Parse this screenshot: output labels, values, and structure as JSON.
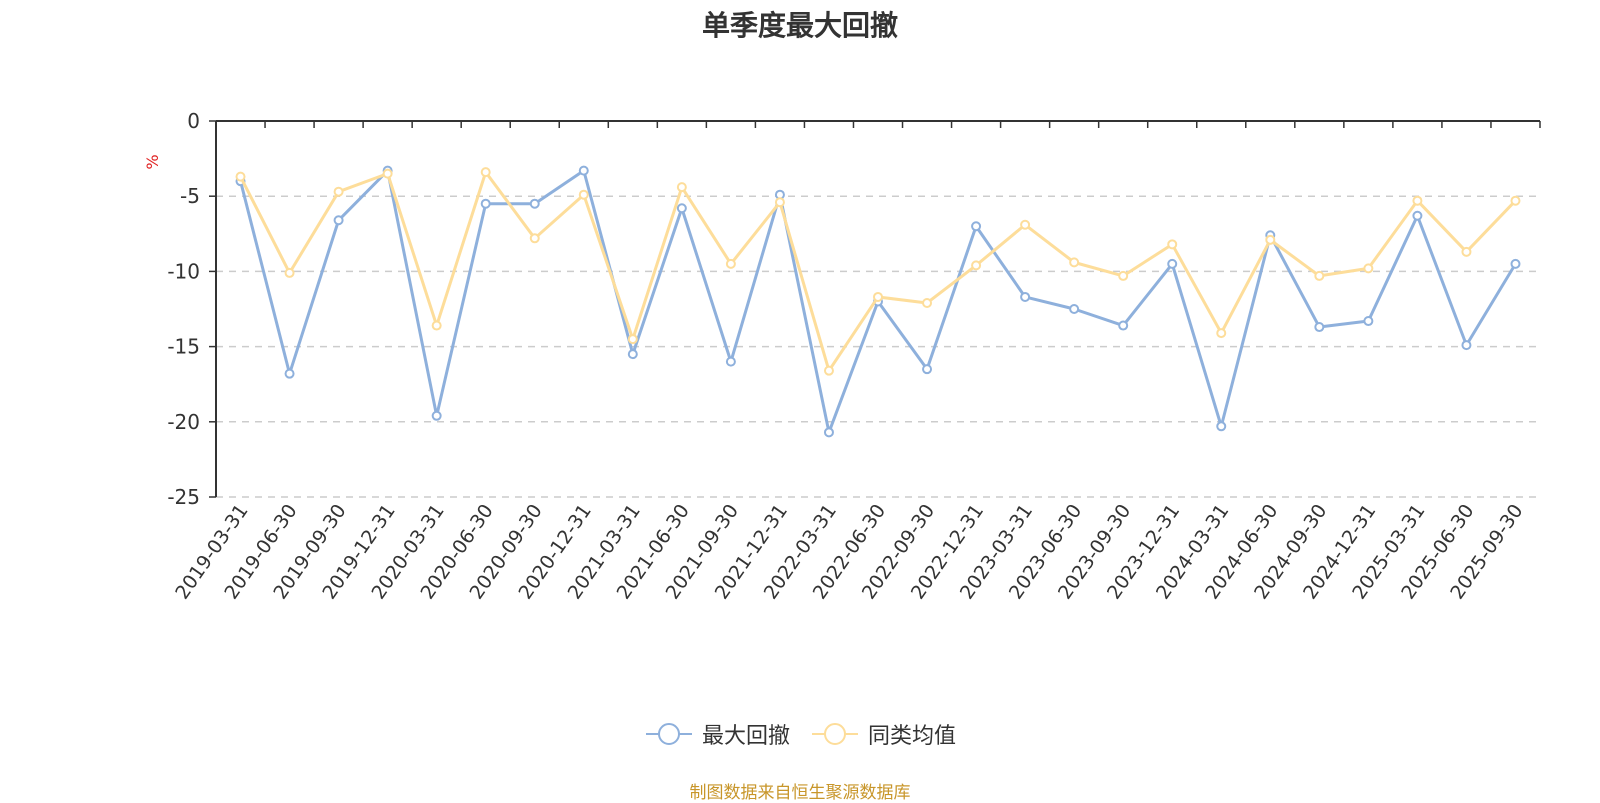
{
  "chart_data": {
    "type": "line",
    "title": "单季度最大回撤",
    "ylabel": "%",
    "ylim": [
      -25,
      0
    ],
    "yticks": [
      0,
      -5,
      -10,
      -15,
      -20,
      -25
    ],
    "grid": true,
    "legend_position": "bottom-center",
    "categories": [
      "2019-03-31",
      "2019-06-30",
      "2019-09-30",
      "2019-12-31",
      "2020-03-31",
      "2020-06-30",
      "2020-09-30",
      "2020-12-31",
      "2021-03-31",
      "2021-06-30",
      "2021-09-30",
      "2021-12-31",
      "2022-03-31",
      "2022-06-30",
      "2022-09-30",
      "2022-12-31",
      "2023-03-31",
      "2023-06-30",
      "2023-09-30",
      "2023-12-31",
      "2024-03-31",
      "2024-06-30",
      "2024-09-30",
      "2024-12-31",
      "2025-03-31",
      "2025-06-30",
      "2025-09-30"
    ],
    "series": [
      {
        "name": "最大回撤",
        "color": "#8eb0dc",
        "values": [
          -4.0,
          -16.8,
          -6.6,
          -3.3,
          -19.6,
          -5.5,
          -5.5,
          -3.3,
          -15.5,
          -5.8,
          -16.0,
          -4.9,
          -20.7,
          -12.0,
          -16.5,
          -7.0,
          -11.7,
          -12.5,
          -13.6,
          -9.5,
          -20.3,
          -7.6,
          -13.7,
          -13.3,
          -6.3,
          -14.9,
          -9.5
        ]
      },
      {
        "name": "同类均值",
        "color": "#fddd9a",
        "values": [
          -3.7,
          -10.1,
          -4.7,
          -3.5,
          -13.6,
          -3.4,
          -7.8,
          -4.9,
          -14.5,
          -4.4,
          -9.5,
          -5.4,
          -16.6,
          -11.7,
          -12.1,
          -9.6,
          -6.9,
          -9.4,
          -10.3,
          -8.2,
          -14.1,
          -7.9,
          -10.3,
          -9.8,
          -5.3,
          -8.7,
          -5.3
        ]
      }
    ],
    "source": "制图数据来自恒生聚源数据库"
  }
}
